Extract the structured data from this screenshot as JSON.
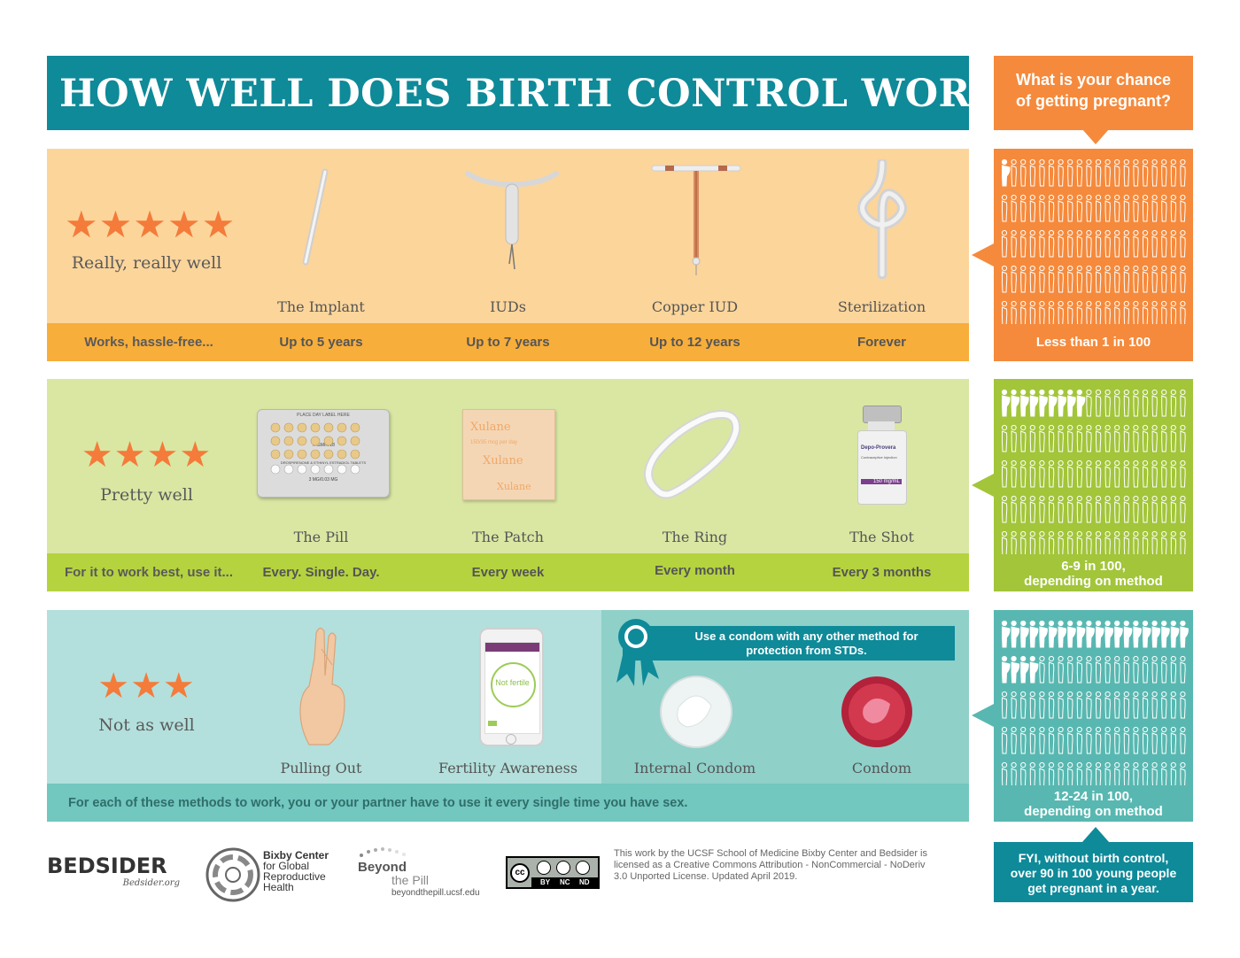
{
  "title": "HOW WELL DOES BIRTH CONTROL WORK?",
  "callout": {
    "line1": "What is your chance",
    "line2": "of getting pregnant?"
  },
  "tiers": [
    {
      "rating": 5,
      "stars_text": "★★★★★",
      "label": "Really, really well",
      "lead": "Works, hassle-free...",
      "methods": [
        {
          "name": "The Implant",
          "duration": "Up to 5 years"
        },
        {
          "name": "IUDs",
          "duration": "Up to 7 years"
        },
        {
          "name": "Copper IUD",
          "duration": "Up to 12 years"
        },
        {
          "name": "Sterilization",
          "duration": "Forever"
        }
      ],
      "chance": "Less than 1 in 100",
      "chance_pregnant": 1,
      "colors": {
        "top": "#fcd59b",
        "bar": "#f8ae3b",
        "side": "#f58a3c"
      }
    },
    {
      "rating": 4,
      "stars_text": "★★★★",
      "label": "Pretty well",
      "lead": "For it to work best, use it...",
      "methods": [
        {
          "name": "The Pill",
          "duration": "Every. Single. Day."
        },
        {
          "name": "The Patch",
          "duration": "Every week"
        },
        {
          "name": "The Ring",
          "duration": "Every month"
        },
        {
          "name": "The Shot",
          "duration": "Every 3 months"
        }
      ],
      "chance_line1": "6-9 in 100,",
      "chance_line2": "depending on method",
      "chance_pregnant": 9,
      "colors": {
        "top": "#d9e7a3",
        "bar": "#b5d33f",
        "side": "#a2c53a"
      }
    },
    {
      "rating": 3,
      "stars_text": "★★★",
      "label": "Not as well",
      "lead": "For each of these methods to work, you or your partner have to use it every single time you have sex.",
      "methods": [
        {
          "name": "Pulling Out"
        },
        {
          "name": "Fertility Awareness"
        },
        {
          "name": "Internal Condom"
        },
        {
          "name": "Condom"
        }
      ],
      "condom_note_line1": "Use a condom with any other method for",
      "condom_note_line2": "protection from STDs.",
      "app_text": "Not fertile",
      "chance_line1": "12-24 in 100,",
      "chance_line2": "depending on method",
      "chance_pregnant": 24,
      "colors": {
        "top": "#b3e0dc",
        "bar": "#72c7bf",
        "side": "#58b8b1"
      }
    }
  ],
  "pill_labels": {
    "top": "PLACE DAY LABEL HERE",
    "brand": "YASMIN 28",
    "drug": "DROSPIRENONE & ETHINYL ESTRADIOL TABLETS",
    "dose": "3 MG/0.03 MG"
  },
  "patch_labels": {
    "brand": "Xulane",
    "dose": "150/35 mcg per day"
  },
  "shot_labels": {
    "name": "Depo-Provera",
    "sub": "Contraceptive Injection",
    "dose": "150 mg/mL"
  },
  "fyi": {
    "line1": "FYI, without birth control,",
    "line2": "over 90 in 100 young people",
    "line3": "get pregnant in a year."
  },
  "footer": {
    "bedsider": "BEDSIDER",
    "bedsider_url": "Bedsider.org",
    "bixby_line1": "Bixby Center",
    "bixby_line2": "for Global",
    "bixby_line3": "Reproductive",
    "bixby_line4": "Health",
    "beyond_line1": "Beyond",
    "beyond_line2": "the Pill",
    "beyond_url": "beyondthepill.ucsf.edu",
    "cc_by": "BY",
    "cc_nc": "NC",
    "cc_nd": "ND",
    "cc_badge": "cc",
    "license_line1": "This work by the UCSF School of Medicine Bixby Center and Bedsider is",
    "license_line2": "licensed as a Creative Commons Attribution - NonCommercial - NoDeriv",
    "license_line3": "3.0 Unported License. Updated April 2019."
  }
}
